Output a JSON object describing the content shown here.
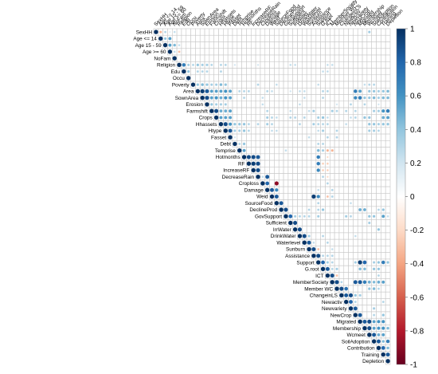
{
  "chart_data": {
    "type": "heatmap",
    "variables": [
      "SexHH",
      "Age <= 14",
      "Age 15 - 59",
      "Age >= 60",
      "NoFam",
      "Religion",
      "Edu",
      "Occu",
      "Poverty",
      "Area",
      "SownArea",
      "Erosion",
      "Farmshift",
      "Crops",
      "Hhassets",
      "Htype",
      "Fasset",
      "Debt",
      "Temprise",
      "Hotmonths",
      "RF",
      "IncreaseRF",
      "DecreaseRain",
      "Croploss",
      "Damage",
      "Weid",
      "SourceFood",
      "DeclineProd",
      "GovSupport",
      "Sufficient",
      "IrrWater",
      "DrinkWater",
      "Waterlevel",
      "Sunburn",
      "Assistance",
      "Support",
      "G.root",
      "ICT",
      "MemberSociety",
      "Member WC",
      "ChangeinLS",
      "Newactiv",
      "Newvariety",
      "NewCrop",
      "Migrated",
      "Membership",
      "Wcmeet",
      "SoilAdoption",
      "Contribution",
      "Training",
      "Depletion"
    ],
    "column_labels": [
      "SexHH",
      "Age <= 14",
      "Age 15 - 59",
      "Age >= 60",
      "NoFam",
      "Religion",
      "Edu",
      "Occu",
      "Poverty",
      "Area",
      "SownArea",
      "Erosion",
      "Farmshift",
      "Crops",
      "Hhassets",
      "Htype",
      "Fasset",
      "Debt",
      "Temprise",
      "Hotmonths",
      "RF",
      "IncreaseRF",
      "DecreaseRain",
      "Croploss",
      "Damage",
      "Weid",
      "SourceFood",
      "DeclineProd",
      "GovSupport",
      "Sufficient",
      "IrrWater",
      "DrinkWater",
      "Waterlevel",
      "Sunburn",
      "Assistance",
      "Support",
      "G.root",
      "ICT",
      "MemberSociety",
      "Member WC",
      "ChangeinLS",
      "Newactiv",
      "Newvariety",
      "NewCrop",
      "Migrated",
      "Membership",
      "Wcmeet",
      "SoilAdoption",
      "Contribution",
      "Training",
      "Depletion"
    ],
    "legend": {
      "range": [
        -1,
        1
      ],
      "ticks": [
        "1",
        "0.8",
        "0.6",
        "0.4",
        "0.2",
        "0",
        "-0.2",
        "-0.4",
        "-0.6",
        "-0.8",
        "-1"
      ],
      "colors": [
        "#67001f",
        "#b2182b",
        "#d6604d",
        "#f4a582",
        "#fddbc7",
        "#ffffff",
        "#d1e5f0",
        "#92c5de",
        "#4393c3",
        "#2166ac",
        "#053061"
      ]
    },
    "cells": [
      [
        0,
        1,
        -0.35
      ],
      [
        0,
        2,
        0.3
      ],
      [
        0,
        3,
        0.15
      ],
      [
        0,
        4,
        0.25
      ],
      [
        0,
        46,
        0.35
      ],
      [
        1,
        2,
        0.4
      ],
      [
        1,
        3,
        0.55
      ],
      [
        2,
        3,
        0.55
      ],
      [
        2,
        4,
        0.45
      ],
      [
        2,
        5,
        0.25
      ],
      [
        3,
        4,
        0.25
      ],
      [
        3,
        5,
        -0.3
      ],
      [
        5,
        6,
        0.7
      ],
      [
        5,
        7,
        0.35
      ],
      [
        5,
        8,
        0.3
      ],
      [
        5,
        9,
        0.4
      ],
      [
        5,
        10,
        0.35
      ],
      [
        5,
        11,
        0.35
      ],
      [
        5,
        12,
        0.3
      ],
      [
        5,
        14,
        0.3
      ],
      [
        5,
        15,
        0.3
      ],
      [
        5,
        17,
        0.2
      ],
      [
        5,
        22,
        0.2
      ],
      [
        5,
        29,
        0.25
      ],
      [
        5,
        30,
        0.25
      ],
      [
        5,
        37,
        0.25
      ],
      [
        5,
        38,
        0.25
      ],
      [
        6,
        7,
        0.4
      ],
      [
        6,
        9,
        0.3
      ],
      [
        6,
        10,
        0.3
      ],
      [
        6,
        11,
        0.3
      ],
      [
        6,
        14,
        0.3
      ],
      [
        6,
        36,
        0.25
      ],
      [
        6,
        37,
        0.25
      ],
      [
        8,
        9,
        0.4
      ],
      [
        8,
        10,
        0.45
      ],
      [
        8,
        11,
        0.4
      ],
      [
        8,
        12,
        0.35
      ],
      [
        8,
        13,
        0.35
      ],
      [
        8,
        14,
        0.45
      ],
      [
        8,
        15,
        0.4
      ],
      [
        8,
        22,
        0.3
      ],
      [
        8,
        26,
        0.25
      ],
      [
        8,
        35,
        0.25
      ],
      [
        8,
        45,
        0.25
      ],
      [
        8,
        46,
        0.3
      ],
      [
        8,
        47,
        0.3
      ],
      [
        9,
        10,
        0.95
      ],
      [
        9,
        11,
        0.85
      ],
      [
        9,
        12,
        0.55
      ],
      [
        9,
        13,
        0.55
      ],
      [
        9,
        14,
        0.55
      ],
      [
        9,
        15,
        0.6
      ],
      [
        9,
        16,
        0.55
      ],
      [
        9,
        18,
        0.3
      ],
      [
        9,
        19,
        0.3
      ],
      [
        9,
        20,
        0.3
      ],
      [
        9,
        24,
        0.3
      ],
      [
        9,
        25,
        0.25
      ],
      [
        9,
        29,
        0.2
      ],
      [
        9,
        31,
        0.25
      ],
      [
        9,
        32,
        0.25
      ],
      [
        9,
        36,
        0.3
      ],
      [
        9,
        37,
        0.3
      ],
      [
        9,
        43,
        0.7
      ],
      [
        9,
        44,
        0.55
      ],
      [
        9,
        46,
        0.4
      ],
      [
        9,
        47,
        0.4
      ],
      [
        9,
        48,
        0.35
      ],
      [
        9,
        49,
        0.4
      ],
      [
        9,
        50,
        0.45
      ],
      [
        10,
        11,
        0.9
      ],
      [
        10,
        12,
        0.55
      ],
      [
        10,
        13,
        0.6
      ],
      [
        10,
        14,
        0.5
      ],
      [
        10,
        15,
        0.6
      ],
      [
        10,
        16,
        0.55
      ],
      [
        10,
        19,
        0.3
      ],
      [
        10,
        23,
        0.25
      ],
      [
        10,
        32,
        0.25
      ],
      [
        10,
        36,
        0.3
      ],
      [
        10,
        43,
        0.65
      ],
      [
        10,
        44,
        0.7
      ],
      [
        10,
        45,
        0.4
      ],
      [
        10,
        46,
        0.4
      ],
      [
        10,
        47,
        0.45
      ],
      [
        10,
        48,
        0.35
      ],
      [
        10,
        49,
        0.45
      ],
      [
        10,
        50,
        0.45
      ],
      [
        11,
        12,
        0.4
      ],
      [
        11,
        13,
        0.35
      ],
      [
        11,
        14,
        0.35
      ],
      [
        11,
        15,
        0.35
      ],
      [
        11,
        23,
        0.25
      ],
      [
        11,
        31,
        0.25
      ],
      [
        11,
        39,
        0.2
      ],
      [
        11,
        42,
        0.3
      ],
      [
        11,
        45,
        0.3
      ],
      [
        11,
        48,
        0.2
      ],
      [
        12,
        13,
        0.9
      ],
      [
        12,
        14,
        0.5
      ],
      [
        12,
        15,
        0.5
      ],
      [
        12,
        16,
        0.55
      ],
      [
        12,
        24,
        0.3
      ],
      [
        12,
        29,
        0.25
      ],
      [
        12,
        33,
        0.25
      ],
      [
        12,
        34,
        0.35
      ],
      [
        12,
        38,
        0.35
      ],
      [
        12,
        39,
        0.3
      ],
      [
        12,
        41,
        0.3
      ],
      [
        12,
        43,
        0.3
      ],
      [
        12,
        47,
        0.35
      ],
      [
        12,
        48,
        0.35
      ],
      [
        12,
        49,
        0.6
      ],
      [
        12,
        50,
        0.7
      ],
      [
        13,
        14,
        0.55
      ],
      [
        13,
        15,
        0.55
      ],
      [
        13,
        16,
        0.55
      ],
      [
        13,
        24,
        0.35
      ],
      [
        13,
        25,
        0.3
      ],
      [
        13,
        26,
        0.25
      ],
      [
        13,
        29,
        0.3
      ],
      [
        13,
        30,
        0.3
      ],
      [
        13,
        32,
        0.3
      ],
      [
        13,
        35,
        0.35
      ],
      [
        13,
        36,
        0.4
      ],
      [
        13,
        37,
        0.25
      ],
      [
        13,
        42,
        0.25
      ],
      [
        13,
        43,
        0.3
      ],
      [
        13,
        45,
        0.4
      ],
      [
        13,
        46,
        0.4
      ],
      [
        13,
        49,
        0.5
      ],
      [
        13,
        50,
        0.55
      ],
      [
        14,
        15,
        0.9
      ],
      [
        14,
        16,
        0.6
      ],
      [
        14,
        17,
        0.4
      ],
      [
        14,
        18,
        0.4
      ],
      [
        14,
        19,
        0.4
      ],
      [
        14,
        20,
        0.3
      ],
      [
        14,
        22,
        0.3
      ],
      [
        14,
        24,
        0.35
      ],
      [
        14,
        25,
        0.3
      ],
      [
        14,
        31,
        0.3
      ],
      [
        14,
        34,
        0.35
      ],
      [
        14,
        35,
        0.3
      ],
      [
        14,
        36,
        0.3
      ],
      [
        14,
        37,
        0.3
      ],
      [
        14,
        41,
        0.25
      ],
      [
        14,
        46,
        0.4
      ],
      [
        14,
        47,
        0.4
      ],
      [
        14,
        48,
        0.35
      ],
      [
        14,
        49,
        0.4
      ],
      [
        14,
        50,
        0.4
      ],
      [
        15,
        16,
        0.85
      ],
      [
        15,
        17,
        0.35
      ],
      [
        15,
        18,
        0.35
      ],
      [
        15,
        19,
        0.4
      ],
      [
        15,
        20,
        0.3
      ],
      [
        15,
        25,
        0.25
      ],
      [
        15,
        26,
        0.25
      ],
      [
        15,
        35,
        0.25
      ],
      [
        15,
        36,
        0.35
      ],
      [
        15,
        39,
        0.3
      ],
      [
        15,
        46,
        0.35
      ],
      [
        15,
        47,
        0.35
      ],
      [
        15,
        48,
        0.3
      ],
      [
        16,
        17,
        0.2
      ],
      [
        16,
        33,
        0.25
      ],
      [
        16,
        37,
        0.3
      ],
      [
        16,
        39,
        0.3
      ],
      [
        17,
        18,
        0.3
      ],
      [
        17,
        19,
        0.4
      ],
      [
        17,
        35,
        0.3
      ],
      [
        17,
        36,
        0.3
      ],
      [
        18,
        19,
        0.55
      ],
      [
        18,
        28,
        0.25
      ],
      [
        18,
        35,
        0.45
      ],
      [
        18,
        36,
        0.35
      ],
      [
        18,
        37,
        -0.35
      ],
      [
        18,
        38,
        -0.35
      ],
      [
        19,
        20,
        0.9
      ],
      [
        19,
        21,
        0.9
      ],
      [
        19,
        22,
        0.85
      ],
      [
        19,
        35,
        0.7
      ],
      [
        19,
        37,
        -0.2
      ],
      [
        20,
        21,
        0.95
      ],
      [
        20,
        22,
        0.9
      ],
      [
        20,
        35,
        0.7
      ],
      [
        20,
        36,
        -0.25
      ],
      [
        20,
        37,
        -0.25
      ],
      [
        21,
        22,
        0.9
      ],
      [
        21,
        35,
        0.65
      ],
      [
        21,
        36,
        -0.25
      ],
      [
        21,
        37,
        -0.25
      ],
      [
        22,
        23,
        0.25
      ],
      [
        22,
        24,
        0.85
      ],
      [
        22,
        36,
        0.3
      ],
      [
        22,
        37,
        -0.2
      ],
      [
        23,
        24,
        0.8
      ],
      [
        23,
        26,
        -0.9
      ],
      [
        23,
        37,
        0.3
      ],
      [
        24,
        25,
        0.85
      ],
      [
        24,
        26,
        0.65
      ],
      [
        24,
        35,
        0.25
      ],
      [
        24,
        38,
        0.3
      ],
      [
        25,
        26,
        0.85
      ],
      [
        25,
        34,
        0.95
      ],
      [
        25,
        35,
        0.65
      ],
      [
        25,
        37,
        -0.3
      ],
      [
        25,
        38,
        0.3
      ],
      [
        26,
        27,
        0.85
      ],
      [
        26,
        35,
        0.3
      ],
      [
        26,
        42,
        0.25
      ],
      [
        27,
        28,
        0.9
      ],
      [
        27,
        33,
        0.3
      ],
      [
        27,
        35,
        0.3
      ],
      [
        27,
        36,
        0.4
      ],
      [
        27,
        44,
        0.5
      ],
      [
        27,
        45,
        0.5
      ],
      [
        27,
        48,
        0.3
      ],
      [
        27,
        49,
        0.4
      ],
      [
        28,
        29,
        0.8
      ],
      [
        28,
        30,
        0.35
      ],
      [
        28,
        31,
        0.3
      ],
      [
        28,
        32,
        0.3
      ],
      [
        28,
        33,
        0.3
      ],
      [
        28,
        35,
        0.35
      ],
      [
        28,
        41,
        0.35
      ],
      [
        28,
        42,
        0.3
      ],
      [
        28,
        46,
        0.4
      ],
      [
        28,
        47,
        0.4
      ],
      [
        28,
        49,
        0.55
      ],
      [
        28,
        50,
        0.25
      ],
      [
        29,
        30,
        0.9
      ],
      [
        29,
        46,
        0.35
      ],
      [
        30,
        31,
        0.9
      ],
      [
        30,
        48,
        0.4
      ],
      [
        31,
        32,
        0.9
      ],
      [
        31,
        33,
        0.35
      ],
      [
        31,
        36,
        0.3
      ],
      [
        31,
        43,
        0.25
      ],
      [
        32,
        33,
        0.85
      ],
      [
        32,
        34,
        0.25
      ],
      [
        32,
        37,
        0.3
      ],
      [
        33,
        34,
        0.9
      ],
      [
        33,
        35,
        -0.3
      ],
      [
        33,
        38,
        0.25
      ],
      [
        34,
        35,
        0.9
      ],
      [
        34,
        36,
        0.3
      ],
      [
        34,
        37,
        0.3
      ],
      [
        34,
        38,
        0.3
      ],
      [
        35,
        36,
        0.8
      ],
      [
        35,
        37,
        0.35
      ],
      [
        35,
        38,
        0.3
      ],
      [
        35,
        43,
        0.35
      ],
      [
        35,
        44,
        0.95
      ],
      [
        35,
        45,
        0.8
      ],
      [
        35,
        47,
        0.35
      ],
      [
        35,
        48,
        0.4
      ],
      [
        35,
        49,
        0.7
      ],
      [
        35,
        50,
        0.4
      ],
      [
        36,
        37,
        0.85
      ],
      [
        36,
        38,
        0.3
      ],
      [
        36,
        39,
        0.35
      ],
      [
        36,
        44,
        0.45
      ],
      [
        36,
        45,
        0.45
      ],
      [
        36,
        47,
        0.4
      ],
      [
        36,
        48,
        0.4
      ],
      [
        37,
        38,
        0.9
      ],
      [
        37,
        39,
        -0.3
      ],
      [
        37,
        48,
        0.3
      ],
      [
        38,
        39,
        0.9
      ],
      [
        38,
        40,
        0.3
      ],
      [
        38,
        43,
        0.85
      ],
      [
        38,
        44,
        0.85
      ],
      [
        38,
        45,
        0.7
      ],
      [
        38,
        46,
        0.5
      ],
      [
        38,
        47,
        0.45
      ],
      [
        38,
        48,
        0.5
      ],
      [
        38,
        49,
        0.55
      ],
      [
        39,
        40,
        0.9
      ],
      [
        39,
        41,
        0.75
      ],
      [
        39,
        46,
        0.4
      ],
      [
        39,
        47,
        0.45
      ],
      [
        39,
        48,
        0.3
      ],
      [
        40,
        41,
        0.85
      ],
      [
        40,
        42,
        0.9
      ],
      [
        40,
        43,
        0.4
      ],
      [
        40,
        44,
        0.35
      ],
      [
        41,
        42,
        0.8
      ],
      [
        41,
        43,
        0.3
      ],
      [
        41,
        49,
        0.3
      ],
      [
        42,
        43,
        0.85
      ],
      [
        42,
        47,
        0.35
      ],
      [
        43,
        44,
        0.85
      ],
      [
        43,
        47,
        0.3
      ],
      [
        43,
        49,
        0.4
      ],
      [
        44,
        45,
        0.85
      ],
      [
        44,
        46,
        0.9
      ],
      [
        44,
        47,
        0.55
      ],
      [
        44,
        48,
        0.6
      ],
      [
        44,
        49,
        0.6
      ],
      [
        45,
        46,
        0.9
      ],
      [
        45,
        47,
        0.55
      ],
      [
        45,
        48,
        0.6
      ],
      [
        45,
        49,
        0.6
      ],
      [
        45,
        50,
        0.45
      ],
      [
        46,
        47,
        0.85
      ],
      [
        46,
        48,
        0.5
      ],
      [
        46,
        49,
        0.55
      ],
      [
        47,
        48,
        0.85
      ],
      [
        47,
        49,
        0.45
      ],
      [
        47,
        50,
        0.7
      ],
      [
        48,
        49,
        0.8
      ],
      [
        48,
        50,
        0.45
      ],
      [
        49,
        50,
        0.85
      ]
    ]
  }
}
